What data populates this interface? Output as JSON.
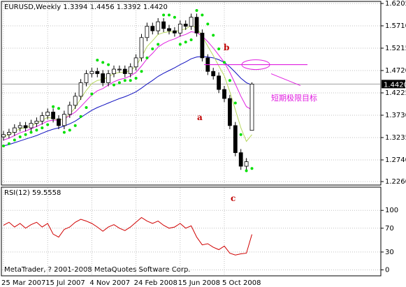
{
  "chart_data": [
    {
      "type": "candlestick",
      "title": "EURUSD,Weekly 1.3394 1.4456 1.3392 1.4420",
      "open": [
        1.325,
        1.33,
        1.335,
        1.345,
        1.35,
        1.345,
        1.355,
        1.36,
        1.372,
        1.38,
        1.365,
        1.35,
        1.375,
        1.395,
        1.415,
        1.445,
        1.465,
        1.47,
        1.465,
        1.445,
        1.465,
        1.475,
        1.475,
        1.465,
        1.48,
        1.5,
        1.545,
        1.57,
        1.56,
        1.58,
        1.565,
        1.56,
        1.555,
        1.575,
        1.57,
        1.59,
        1.555,
        1.5,
        1.47,
        1.46,
        1.43,
        1.41,
        1.35,
        1.29,
        1.26,
        1.3394
      ],
      "high": [
        1.338,
        1.343,
        1.353,
        1.358,
        1.358,
        1.363,
        1.368,
        1.38,
        1.388,
        1.388,
        1.373,
        1.383,
        1.403,
        1.423,
        1.453,
        1.473,
        1.478,
        1.478,
        1.473,
        1.473,
        1.483,
        1.483,
        1.483,
        1.488,
        1.508,
        1.553,
        1.578,
        1.578,
        1.588,
        1.588,
        1.573,
        1.568,
        1.583,
        1.583,
        1.598,
        1.598,
        1.563,
        1.508,
        1.478,
        1.468,
        1.438,
        1.418,
        1.358,
        1.298,
        1.278,
        1.4456
      ],
      "low": [
        1.317,
        1.322,
        1.327,
        1.337,
        1.337,
        1.337,
        1.347,
        1.352,
        1.364,
        1.357,
        1.342,
        1.342,
        1.367,
        1.387,
        1.407,
        1.437,
        1.457,
        1.457,
        1.437,
        1.437,
        1.457,
        1.467,
        1.457,
        1.457,
        1.472,
        1.492,
        1.537,
        1.552,
        1.552,
        1.557,
        1.552,
        1.547,
        1.547,
        1.562,
        1.562,
        1.547,
        1.492,
        1.462,
        1.452,
        1.422,
        1.402,
        1.342,
        1.282,
        1.252,
        1.252,
        1.3392
      ],
      "close": [
        1.33,
        1.335,
        1.345,
        1.35,
        1.345,
        1.355,
        1.36,
        1.372,
        1.38,
        1.365,
        1.35,
        1.375,
        1.395,
        1.415,
        1.445,
        1.465,
        1.47,
        1.465,
        1.445,
        1.465,
        1.475,
        1.475,
        1.465,
        1.48,
        1.5,
        1.545,
        1.57,
        1.56,
        1.58,
        1.565,
        1.56,
        1.555,
        1.575,
        1.57,
        1.59,
        1.555,
        1.5,
        1.47,
        1.46,
        1.43,
        1.41,
        1.35,
        1.29,
        1.26,
        1.27,
        1.442
      ],
      "series": [
        {
          "color": "#1010c0",
          "values": [
            1.305,
            1.308,
            1.312,
            1.316,
            1.32,
            1.324,
            1.328,
            1.333,
            1.338,
            1.342,
            1.345,
            1.349,
            1.354,
            1.36,
            1.368,
            1.376,
            1.384,
            1.39,
            1.395,
            1.4,
            1.405,
            1.41,
            1.414,
            1.419,
            1.425,
            1.433,
            1.442,
            1.45,
            1.459,
            1.466,
            1.472,
            1.478,
            1.485,
            1.491,
            1.498,
            1.502,
            1.503,
            1.502,
            1.5,
            1.496,
            1.49,
            1.48,
            1.468,
            1.455,
            1.445,
            1.44
          ]
        },
        {
          "color": "#e020e0",
          "values": [
            1.318,
            1.322,
            1.328,
            1.334,
            1.338,
            1.343,
            1.348,
            1.354,
            1.36,
            1.362,
            1.362,
            1.365,
            1.372,
            1.38,
            1.392,
            1.405,
            1.418,
            1.427,
            1.432,
            1.44,
            1.447,
            1.452,
            1.455,
            1.46,
            1.468,
            1.482,
            1.498,
            1.51,
            1.524,
            1.532,
            1.538,
            1.542,
            1.548,
            1.552,
            1.558,
            1.556,
            1.548,
            1.536,
            1.522,
            1.506,
            1.49,
            1.468,
            1.442,
            1.415,
            1.392,
            1.385
          ]
        },
        {
          "color": "#b8d860",
          "values": [
            1.325,
            1.33,
            1.337,
            1.343,
            1.345,
            1.35,
            1.355,
            1.362,
            1.368,
            1.366,
            1.362,
            1.365,
            1.375,
            1.39,
            1.41,
            1.428,
            1.443,
            1.45,
            1.452,
            1.458,
            1.465,
            1.468,
            1.468,
            1.472,
            1.482,
            1.502,
            1.525,
            1.538,
            1.552,
            1.556,
            1.558,
            1.557,
            1.562,
            1.564,
            1.572,
            1.566,
            1.548,
            1.526,
            1.505,
            1.482,
            1.46,
            1.425,
            1.385,
            1.345,
            1.315,
            1.33
          ]
        }
      ],
      "sar": {
        "color": "#00e000",
        "values": [
          1.305,
          1.31,
          1.318,
          1.325,
          1.33,
          1.335,
          1.34,
          1.345,
          1.352,
          1.392,
          1.388,
          1.335,
          1.34,
          1.35,
          1.37,
          1.39,
          1.42,
          1.495,
          1.49,
          1.485,
          1.44,
          1.445,
          1.45,
          1.45,
          1.455,
          1.47,
          1.5,
          1.52,
          1.53,
          1.595,
          1.595,
          1.59,
          1.53,
          1.535,
          1.54,
          1.605,
          1.595,
          1.575,
          1.55,
          1.52,
          1.49,
          1.45,
          1.4,
          1.33,
          1.25,
          1.255
        ]
      },
      "target_line": 1.485,
      "target_color": "#e020e0",
      "last_price": {
        "value": 1.442,
        "label": "1.4420"
      },
      "annotations": [
        "a",
        "b",
        "c",
        "短期极限目标"
      ],
      "ylim": [
        1.2183,
        1.6251
      ],
      "yticks": [
        1.6205,
        {
          "value": 1.571,
          "label": "1.5710"
        },
        1.5215,
        {
          "value": 1.472,
          "label": "1.4720"
        },
        1.4225,
        {
          "value": 1.373,
          "label": "1.3730"
        },
        1.3235,
        {
          "value": 1.274,
          "label": "1.2740"
        },
        {
          "value": 1.226,
          "label": "1.2260"
        }
      ]
    },
    {
      "type": "line",
      "title": "RSI(12) 59.5558",
      "color": "#d00000",
      "categories": [
        "25 Mar 2007",
        null,
        null,
        null,
        null,
        null,
        null,
        null,
        "15 Jul 2007",
        null,
        null,
        null,
        null,
        null,
        null,
        null,
        "4 Nov 2007",
        null,
        null,
        null,
        null,
        null,
        null,
        null,
        "24 Feb 2008",
        null,
        null,
        null,
        null,
        null,
        null,
        null,
        "15 Jun 2008",
        null,
        null,
        null,
        null,
        null,
        null,
        null,
        "5 Oct 2008",
        null,
        null,
        null,
        null,
        null
      ],
      "values": [
        75,
        80,
        72,
        78,
        70,
        76,
        80,
        72,
        78,
        60,
        55,
        68,
        72,
        80,
        85,
        82,
        78,
        72,
        65,
        72,
        76,
        70,
        66,
        72,
        80,
        88,
        82,
        78,
        82,
        75,
        70,
        72,
        78,
        70,
        74,
        55,
        42,
        44,
        38,
        34,
        40,
        28,
        25,
        27,
        28,
        59.5558
      ],
      "ylim": [
        -10,
        139
      ],
      "yticks": [
        0,
        30,
        70,
        100
      ],
      "footer": "MetaTrader, ? 2001-2008 MetaQuotes Software Corp."
    }
  ]
}
